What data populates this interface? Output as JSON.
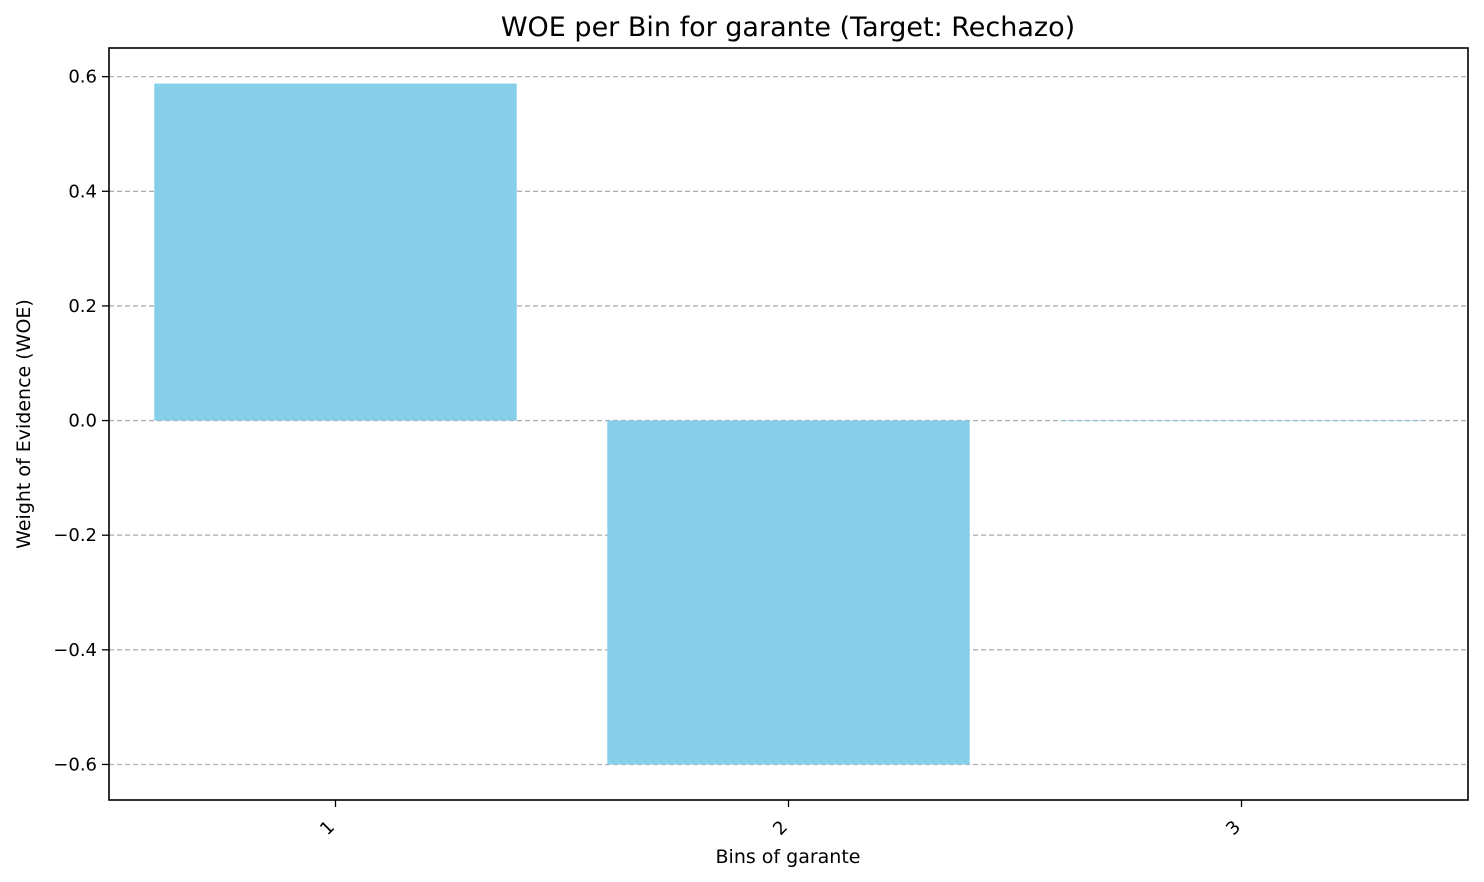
{
  "chart_data": {
    "type": "bar",
    "title": "WOE per Bin for garante (Target: Rechazo)",
    "xlabel": "Bins of garante",
    "ylabel": "Weight of Evidence (WOE)",
    "categories": [
      "1",
      "2",
      "3"
    ],
    "values": [
      0.588,
      -0.6,
      0.0
    ],
    "ylim": [
      -0.662,
      0.65
    ],
    "yticks": [
      0.6,
      0.4,
      0.2,
      0.0,
      -0.2,
      -0.4,
      -0.6
    ],
    "ytick_labels": [
      "0.6",
      "0.4",
      "0.2",
      "0.0",
      "−0.2",
      "−0.4",
      "−0.6"
    ],
    "grid": "horizontal dashed",
    "bar_color": "#87ceeb",
    "grid_color": "#b0b0b0"
  }
}
